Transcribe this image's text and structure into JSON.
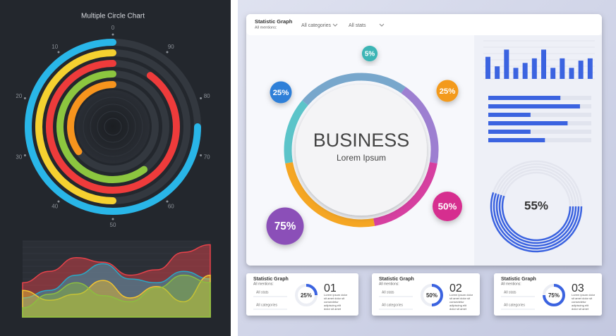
{
  "chart_data": [
    {
      "type": "radial_rings",
      "title": "Multiple Circle Chart",
      "lim": [
        0,
        100
      ],
      "ticks": [
        0,
        10,
        20,
        30,
        40,
        50,
        60,
        70,
        80,
        90
      ],
      "values": [
        75,
        50,
        90,
        60,
        35
      ],
      "colors": [
        "#29b6e8",
        "#f5d130",
        "#ee3b3b",
        "#8cc63f",
        "#f7941d"
      ]
    },
    {
      "type": "wave_area",
      "ylim": [
        0,
        100
      ],
      "series": [
        {
          "color": "#e8424a",
          "values": [
            45,
            60,
            78,
            72,
            55,
            62,
            85,
            95
          ]
        },
        {
          "color": "#2aa8c4",
          "values": [
            25,
            35,
            55,
            70,
            50,
            45,
            60,
            50
          ]
        },
        {
          "color": "#f2c531",
          "values": [
            35,
            22,
            30,
            48,
            25,
            40,
            20,
            55
          ]
        },
        {
          "color": "#8cbf3f",
          "values": [
            12,
            30,
            45,
            28,
            20,
            38,
            55,
            45
          ]
        }
      ]
    },
    {
      "type": "donut_bubbles",
      "values": [
        5,
        25,
        25,
        50,
        75
      ],
      "value_labels": [
        "5%",
        "25%",
        "25%",
        "50%",
        "75%"
      ],
      "colors": [
        "#3cb5b5",
        "#2d7fd8",
        "#f39a1a",
        "#d62f8f",
        "#8b4fb8"
      ]
    },
    {
      "type": "column",
      "ylim": [
        0,
        100
      ],
      "color": "#3b63e0",
      "values": [
        58,
        33,
        77,
        29,
        42,
        54,
        77,
        29,
        54,
        29,
        48,
        54
      ]
    },
    {
      "type": "hbar",
      "xlim": [
        0,
        100
      ],
      "color": "#3b63e0",
      "values": [
        70,
        89,
        41,
        77,
        41,
        55
      ]
    },
    {
      "type": "gauge",
      "lim": [
        0,
        100
      ],
      "color": "#3b63e0",
      "value": 55,
      "value_label": "55%"
    }
  ],
  "dashboard": {
    "title": "Statistic Graph",
    "subtitle": "All mentions:",
    "filters": [
      "All categories",
      "All stats"
    ],
    "center_title": "BUSINESS",
    "center_subtitle": "Lorem  Ipsum"
  },
  "cards": [
    {
      "title": "Statistic Graph",
      "subtitle": "All mentions:",
      "filters": [
        "All stats",
        "All categories"
      ],
      "value": 25,
      "value_label": "25%",
      "number": "01",
      "text": [
        "Lorem ipsum dolor",
        "sit amet dolor sit",
        "consectetur",
        "adipiscing elit",
        "dolor sit amet"
      ]
    },
    {
      "title": "Statistic Graph",
      "subtitle": "All mentions:",
      "filters": [
        "All stats",
        "All categories"
      ],
      "value": 50,
      "value_label": "50%",
      "number": "02",
      "text": [
        "Lorem ipsum dolor",
        "sit amet dolor sit",
        "consectetur",
        "adipiscing elit",
        "dolor sit amet"
      ]
    },
    {
      "title": "Statistic Graph",
      "subtitle": "All mentions:",
      "filters": [
        "All stats",
        "All categories"
      ],
      "value": 75,
      "value_label": "75%",
      "number": "03",
      "text": [
        "Lorem ipsum dolor",
        "sit amet dolor sit",
        "consectetur",
        "adipiscing elit",
        "dolor sit amet"
      ]
    }
  ]
}
